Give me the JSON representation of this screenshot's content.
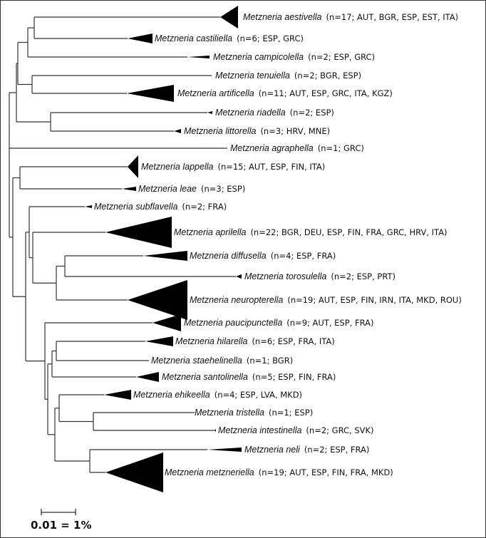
{
  "clades": [
    {
      "species": "Metzneria aestivella",
      "info": "(n=17; AUT, BGR, ESP, EST, ITA)"
    },
    {
      "species": "Metzneria castiliella",
      "info": "(n=6; ESP, GRC)"
    },
    {
      "species": "Metzneria campicolella",
      "info": "(n=2; ESP, GRC)"
    },
    {
      "species": "Metzneria tenuiella",
      "info": "(n=2; BGR, ESP)"
    },
    {
      "species": "Metzneria artificella",
      "info": "(n=11; AUT, ESP, GRC, ITA, KGZ)"
    },
    {
      "species": "Metzneria riadella",
      "info": "(n=2; ESP)"
    },
    {
      "species": "Metzneria littorella",
      "info": "(n=3; HRV, MNE)"
    },
    {
      "species": "Metzneria agraphella",
      "info": "(n=1; GRC)"
    },
    {
      "species": "Metzneria lappella",
      "info": "(n=15; AUT, ESP, FIN, ITA)"
    },
    {
      "species": "Metzneria leae",
      "info": "(n=3; ESP)"
    },
    {
      "species": "Metzneria subflavella",
      "info": "(n=2; FRA)"
    },
    {
      "species": "Metzneria aprilella",
      "info": "(n=22; BGR, DEU, ESP, FIN, FRA, GRC, HRV, ITA)"
    },
    {
      "species": "Metzneria diffusella",
      "info": "(n=4; ESP, FRA)"
    },
    {
      "species": "Metzneria torosulella",
      "info": "(n=2; ESP, PRT)"
    },
    {
      "species": "Metzneria neuropterella",
      "info": "(n=19; AUT, ESP, FIN, IRN, ITA, MKD, ROU)"
    },
    {
      "species": "Metzneria paucipunctella",
      "info": "(n=9; AUT, ESP, FRA)"
    },
    {
      "species": "Metzneria hilarella",
      "info": "(n=6; ESP, FRA, ITA)"
    },
    {
      "species": "Metzneria staehelinella",
      "info": "(n=1; BGR)"
    },
    {
      "species": "Metzneria santolinella",
      "info": "(n=5; ESP, FIN, FRA)"
    },
    {
      "species": "Metzneria ehikeella",
      "info": "(n=4; ESP, LVA, MKD)"
    },
    {
      "species": "Metzneria tristella",
      "info": "(n=1; ESP)"
    },
    {
      "species": "Metzneria intestinella",
      "info": "(n=2; GRC, SVK)"
    },
    {
      "species": "Metzneria neli",
      "info": "(n=2; ESP, FRA)"
    },
    {
      "species": "Metzneria metzneriella",
      "info": "(n=19; AUT, ESP, FIN, FRA, MKD)"
    }
  ],
  "scale_bar": {
    "label": "0.01 = 1%"
  },
  "colors": {
    "branch": "#333333",
    "clade": "#000000"
  }
}
